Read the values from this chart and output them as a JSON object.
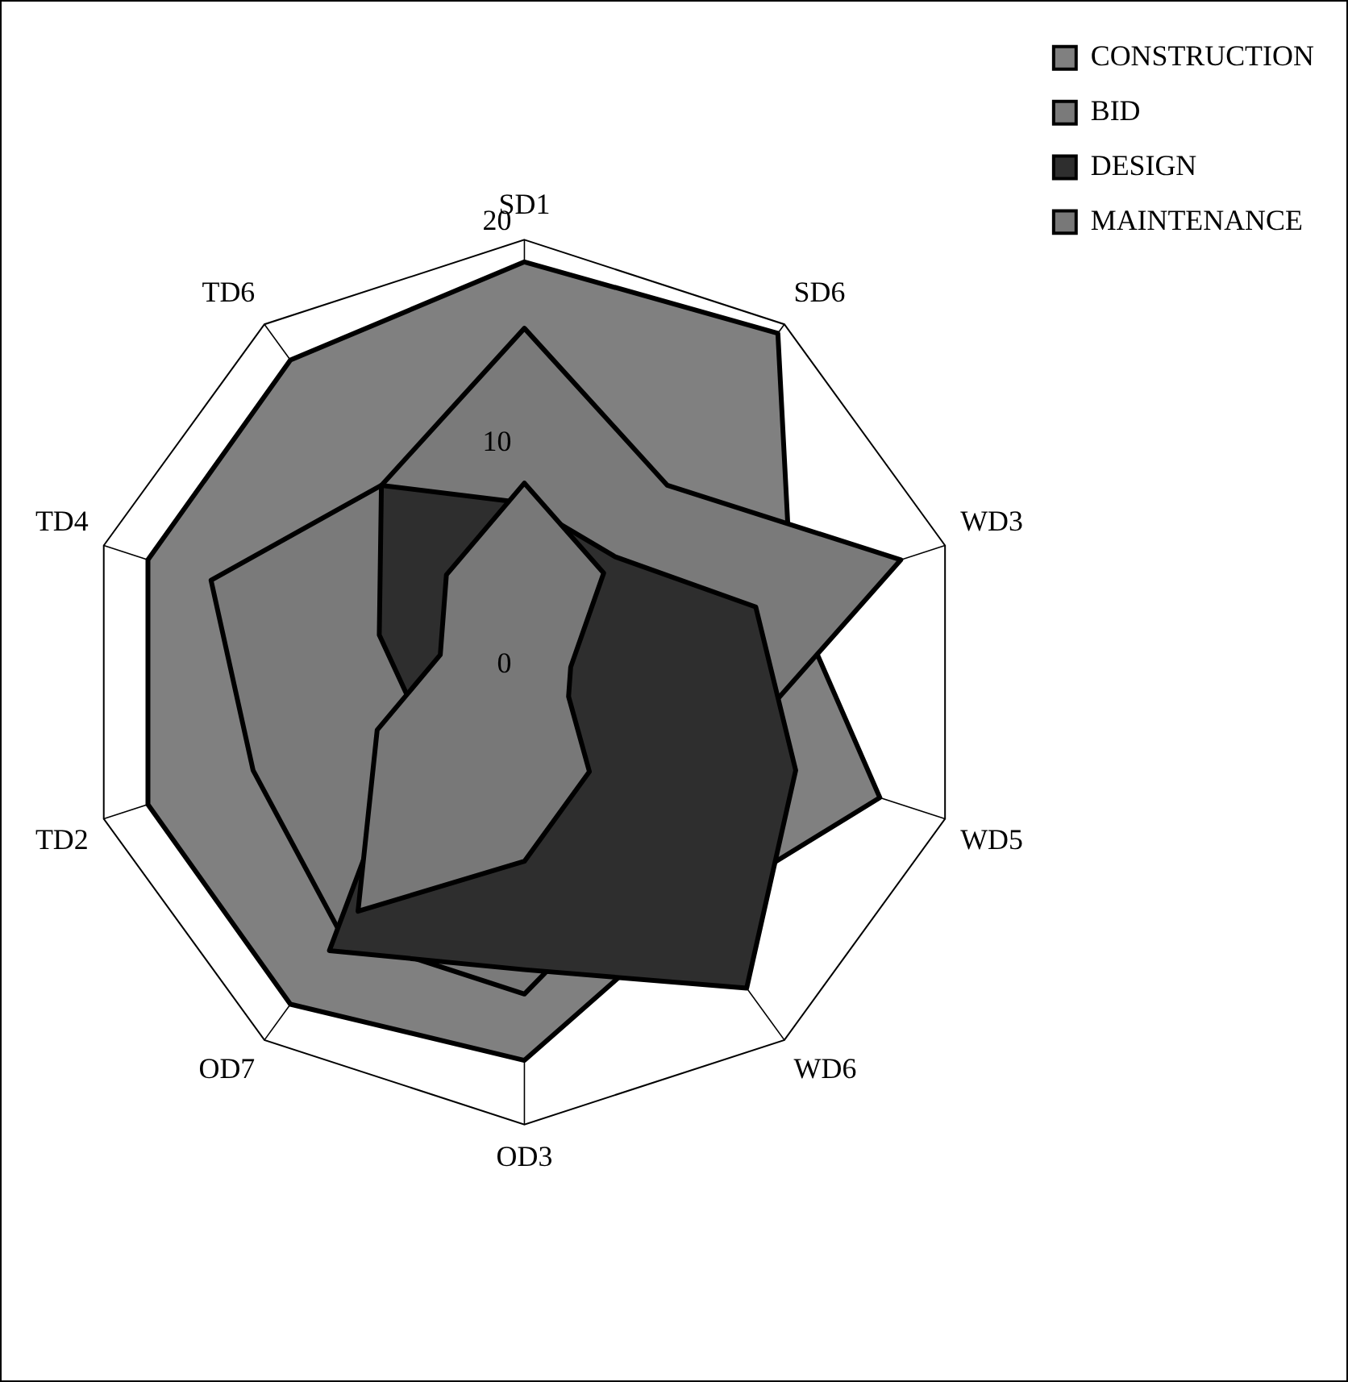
{
  "chart_data": {
    "type": "radar",
    "categories": [
      "SD1",
      "SD6",
      "WD3",
      "WD5",
      "WD6",
      "OD3",
      "OD7",
      "TD2",
      "TD4",
      "TD6"
    ],
    "ylim": [
      0,
      20
    ],
    "yticks": [
      0,
      10,
      20
    ],
    "legend": "top right",
    "marker": "none",
    "series": [
      {
        "name": "CONSTRUCTION",
        "color": "#808080",
        "values": [
          19,
          19.5,
          12.7,
          16.9,
          12.9,
          17.1,
          18,
          17.9,
          17.9,
          18
        ]
      },
      {
        "name": "BID",
        "color": "#7a7a7a",
        "values": [
          16,
          11,
          17.9,
          9.9,
          10,
          14.1,
          14.1,
          12.9,
          14.9,
          11
        ]
      },
      {
        "name": "DESIGN",
        "color": "#2e2e2e",
        "values": [
          8.1,
          7,
          11,
          12.9,
          17.1,
          13,
          15,
          5.1,
          6.9,
          11
        ]
      },
      {
        "name": "MAINTENANCE",
        "color": "#787878",
        "values": [
          9,
          6.1,
          2.2,
          2.1,
          5,
          8.1,
          12.8,
          7,
          4,
          6
        ]
      }
    ]
  }
}
